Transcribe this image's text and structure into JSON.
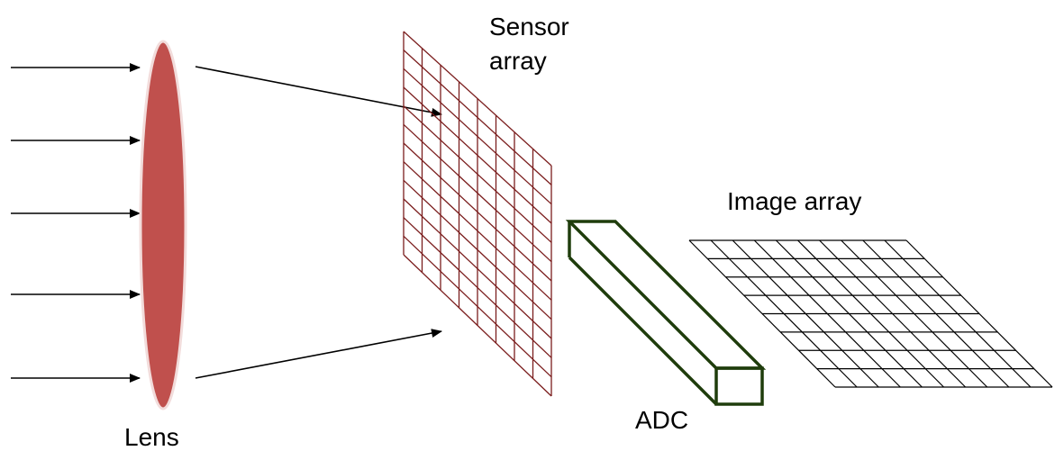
{
  "labels": {
    "lens": "Lens",
    "sensor_line1": "Sensor",
    "sensor_line2": "array",
    "image_array": "Image array",
    "adc": "ADC"
  },
  "colors": {
    "lens_fill": "#c0504d",
    "sensor_grid": "#7b1e1e",
    "adc_outline": "#1f3d0c",
    "image_grid": "#000000",
    "rays": "#000000"
  },
  "sensor_grid": {
    "columns": 8,
    "rows": 12
  },
  "image_grid": {
    "columns": 10,
    "rows": 8
  }
}
